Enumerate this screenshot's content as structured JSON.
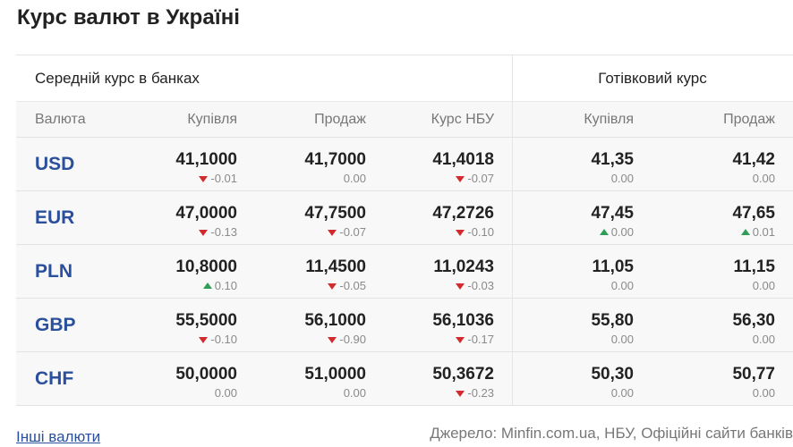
{
  "title": "Курс валют в Україні",
  "groups": {
    "average": "Середній курс в банках",
    "cash": "Готівковий курс"
  },
  "columns": [
    "Валюта",
    "Купівля",
    "Продаж",
    "Курс НБУ",
    "Купівля",
    "Продаж"
  ],
  "rows": [
    {
      "code": "USD",
      "buy": {
        "value": "41,1000",
        "change": "-0.01",
        "dir": "down"
      },
      "sell": {
        "value": "41,7000",
        "change": "0.00",
        "dir": "none"
      },
      "nbu": {
        "value": "41,4018",
        "change": "-0.07",
        "dir": "down"
      },
      "cash_buy": {
        "value": "41,35",
        "change": "0.00",
        "dir": "none"
      },
      "cash_sell": {
        "value": "41,42",
        "change": "0.00",
        "dir": "none"
      }
    },
    {
      "code": "EUR",
      "buy": {
        "value": "47,0000",
        "change": "-0.13",
        "dir": "down"
      },
      "sell": {
        "value": "47,7500",
        "change": "-0.07",
        "dir": "down"
      },
      "nbu": {
        "value": "47,2726",
        "change": "-0.10",
        "dir": "down"
      },
      "cash_buy": {
        "value": "47,45",
        "change": "0.00",
        "dir": "up"
      },
      "cash_sell": {
        "value": "47,65",
        "change": "0.01",
        "dir": "up"
      }
    },
    {
      "code": "PLN",
      "buy": {
        "value": "10,8000",
        "change": "0.10",
        "dir": "up"
      },
      "sell": {
        "value": "11,4500",
        "change": "-0.05",
        "dir": "down"
      },
      "nbu": {
        "value": "11,0243",
        "change": "-0.03",
        "dir": "down"
      },
      "cash_buy": {
        "value": "11,05",
        "change": "0.00",
        "dir": "none"
      },
      "cash_sell": {
        "value": "11,15",
        "change": "0.00",
        "dir": "none"
      }
    },
    {
      "code": "GBP",
      "buy": {
        "value": "55,5000",
        "change": "-0.10",
        "dir": "down"
      },
      "sell": {
        "value": "56,1000",
        "change": "-0.90",
        "dir": "down"
      },
      "nbu": {
        "value": "56,1036",
        "change": "-0.17",
        "dir": "down"
      },
      "cash_buy": {
        "value": "55,80",
        "change": "0.00",
        "dir": "none"
      },
      "cash_sell": {
        "value": "56,30",
        "change": "0.00",
        "dir": "none"
      }
    },
    {
      "code": "CHF",
      "buy": {
        "value": "50,0000",
        "change": "0.00",
        "dir": "none"
      },
      "sell": {
        "value": "51,0000",
        "change": "0.00",
        "dir": "none"
      },
      "nbu": {
        "value": "50,3672",
        "change": "-0.23",
        "dir": "down"
      },
      "cash_buy": {
        "value": "50,30",
        "change": "0.00",
        "dir": "none"
      },
      "cash_sell": {
        "value": "50,77",
        "change": "0.00",
        "dir": "none"
      }
    }
  ],
  "footer": {
    "other_link": "Інші валюти",
    "source": "Джерело: Minfin.com.ua, НБУ, Офіційні сайти банків"
  },
  "colors": {
    "currency_link": "#2a4f9c",
    "down": "#d32b2b",
    "up": "#2e9e57",
    "row_bg": "#f8f8f8"
  }
}
